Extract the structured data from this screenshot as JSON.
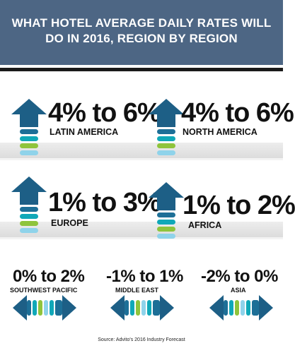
{
  "header": {
    "title": "WHAT HOTEL AVERAGE DAILY RATES WILL DO IN 2016, REGION BY REGION"
  },
  "colors": {
    "header_bg": "#4d6684",
    "arrow_dark": "#1d5f86",
    "arrow_light": "#8fd3ea",
    "teal": "#10a8b8",
    "green": "#8fc43c",
    "band": "#e4e4e4"
  },
  "regions": [
    {
      "name": "LATIN AMERICA",
      "rate": "4% to 6%",
      "direction": "up"
    },
    {
      "name": "NORTH AMERICA",
      "rate": "4% to 6%",
      "direction": "up"
    },
    {
      "name": "EUROPE",
      "rate": "1% to 3%",
      "direction": "up"
    },
    {
      "name": "AFRICA",
      "rate": "1% to 2%",
      "direction": "up"
    },
    {
      "name": "SOUTHWEST PACIFIC",
      "rate": "0% to 2%",
      "direction": "flat"
    },
    {
      "name": "MIDDLE EAST",
      "rate": "-1% to 1%",
      "direction": "flat"
    },
    {
      "name": "ASIA",
      "rate": "-2% to 0%",
      "direction": "flat"
    }
  ],
  "source": "Source: Advito's 2016 Industry Forecast"
}
